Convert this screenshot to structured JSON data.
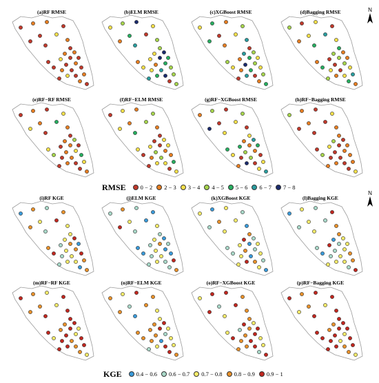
{
  "figure": {
    "rmse_panels": [
      {
        "title": "(a)RF RMSE"
      },
      {
        "title": "(b)ELM RMSE"
      },
      {
        "title": "(c)XGBoost RMSE"
      },
      {
        "title": "(d)Bagging RMSE"
      },
      {
        "title": "(e)RF−RF RMSE"
      },
      {
        "title": "(f)RF−ELM RMSE"
      },
      {
        "title": "(g)RF−XGBoost RMSE"
      },
      {
        "title": "(h)RF−Bagging RMSE"
      }
    ],
    "kge_panels": [
      {
        "title": "(i)RF KGE"
      },
      {
        "title": "(j)ELM KGE"
      },
      {
        "title": "(k)XGBoost KGE"
      },
      {
        "title": "(l)Bagging KGE"
      },
      {
        "title": "(m)RF−RF KGE"
      },
      {
        "title": "(n)RF−ELM KGE"
      },
      {
        "title": "(o)RF−XGBoost KGE"
      },
      {
        "title": "(p)RF−Bagging KGE"
      }
    ],
    "north_label": "N",
    "rmse_legend": {
      "title": "RMSE",
      "items": [
        {
          "label": "0 − 2",
          "color": "#c0392b"
        },
        {
          "label": "2 − 3",
          "color": "#e67e22"
        },
        {
          "label": "3 − 4",
          "color": "#f7e04a"
        },
        {
          "label": "4 − 5",
          "color": "#a6d44c"
        },
        {
          "label": "5 − 6",
          "color": "#27ae60"
        },
        {
          "label": "6 − 7",
          "color": "#2a9d9f"
        },
        {
          "label": "7 − 8",
          "color": "#1a2a6c"
        }
      ]
    },
    "kge_legend": {
      "title": "KGE",
      "items": [
        {
          "label": "0.4 − 0.6",
          "color": "#3a9ad9"
        },
        {
          "label": "0.6 − 0.7",
          "color": "#a8d8c8"
        },
        {
          "label": "0.7 − 0.8",
          "color": "#f7ec6a"
        },
        {
          "label": "0.8 − 0.9",
          "color": "#e8912b"
        },
        {
          "label": "0.9 − 1",
          "color": "#c0271f"
        }
      ]
    },
    "panel_class_weights": [
      [
        5,
        3,
        1,
        0,
        0,
        0,
        0
      ],
      [
        1,
        2,
        4,
        4,
        3,
        2,
        3
      ],
      [
        2,
        3,
        3,
        3,
        3,
        2,
        1
      ],
      [
        3,
        3,
        3,
        3,
        2,
        1,
        0
      ],
      [
        4,
        4,
        2,
        1,
        1,
        0,
        0
      ],
      [
        3,
        3,
        4,
        2,
        1,
        0,
        0
      ],
      [
        3,
        3,
        3,
        2,
        2,
        1,
        1
      ],
      [
        5,
        4,
        1,
        1,
        0,
        0,
        0
      ],
      [
        1,
        2,
        4,
        3,
        2
      ],
      [
        3,
        4,
        3,
        1,
        1
      ],
      [
        2,
        3,
        4,
        2,
        1
      ],
      [
        1,
        3,
        4,
        2,
        1
      ],
      [
        0,
        0,
        2,
        3,
        5
      ],
      [
        1,
        1,
        3,
        4,
        2
      ],
      [
        0,
        1,
        2,
        3,
        4
      ],
      [
        0,
        0,
        2,
        2,
        6
      ]
    ]
  }
}
